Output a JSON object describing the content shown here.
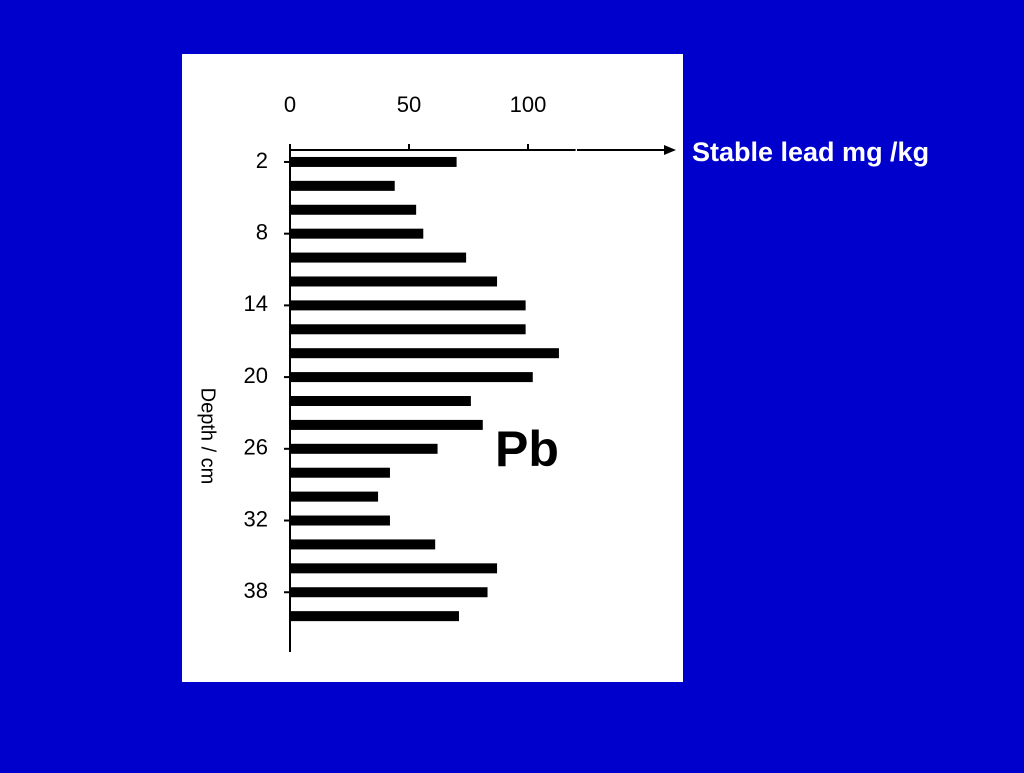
{
  "chart_data": {
    "type": "bar",
    "orientation": "horizontal",
    "xlabel": "Stable lead mg /kg",
    "ylabel": "Depth / cm",
    "annotation": "Pb",
    "y": [
      2,
      4,
      6,
      8,
      10,
      12,
      14,
      16,
      18,
      20,
      22,
      24,
      26,
      28,
      30,
      32,
      34,
      36,
      38,
      40
    ],
    "values": [
      70,
      44,
      53,
      56,
      74,
      87,
      99,
      99,
      113,
      102,
      76,
      81,
      62,
      42,
      37,
      42,
      61,
      87,
      83,
      71
    ],
    "color": "#000000",
    "xlim": [
      0,
      120
    ],
    "xticks": [
      0,
      50,
      100
    ],
    "ylim": [
      1,
      43
    ],
    "yticks": [
      2,
      8,
      14,
      20,
      26,
      32,
      38
    ],
    "y_inverted": true
  }
}
